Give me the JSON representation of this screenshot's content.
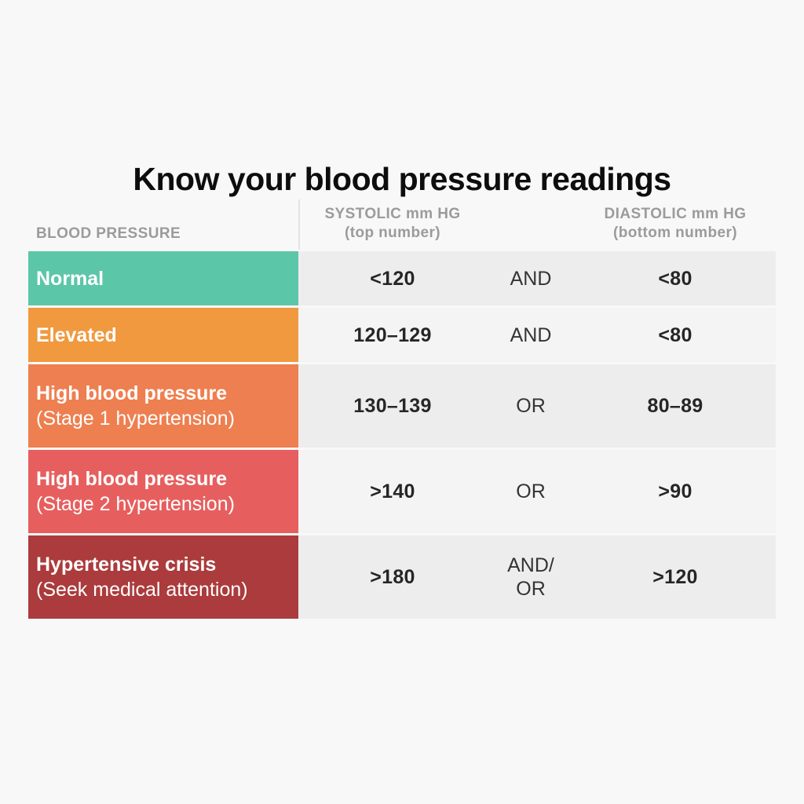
{
  "page": {
    "title": "Know your blood pressure readings",
    "background_color": "#f8f8f8"
  },
  "table": {
    "header": {
      "category": "BLOOD PRESSURE",
      "systolic_line1": "SYSTOLIC mm HG",
      "systolic_line2": "(top number)",
      "diastolic_line1": "DIASTOLIC mm HG",
      "diastolic_line2": "(bottom number)"
    },
    "rows": [
      {
        "label": "Normal",
        "sublabel": "",
        "color": "#5cc6a8",
        "systolic": "<120",
        "connector_line1": "AND",
        "connector_line2": "",
        "diastolic": "<80"
      },
      {
        "label": "Elevated",
        "sublabel": "",
        "color": "#f0993e",
        "systolic": "120–129",
        "connector_line1": "AND",
        "connector_line2": "",
        "diastolic": "<80"
      },
      {
        "label": "High blood pressure",
        "sublabel": "(Stage 1 hypertension)",
        "color": "#ee7f50",
        "systolic": "130–139",
        "connector_line1": "OR",
        "connector_line2": "",
        "diastolic": "80–89"
      },
      {
        "label": "High blood pressure",
        "sublabel": "(Stage 2 hypertension)",
        "color": "#e65f5e",
        "systolic": ">140",
        "connector_line1": "OR",
        "connector_line2": "",
        "diastolic": ">90"
      },
      {
        "label": "Hypertensive crisis",
        "sublabel": "(Seek medical attention)",
        "color": "#ab3b3c",
        "systolic": ">180",
        "connector_line1": "AND/",
        "connector_line2": "OR",
        "diastolic": ">120"
      }
    ]
  }
}
